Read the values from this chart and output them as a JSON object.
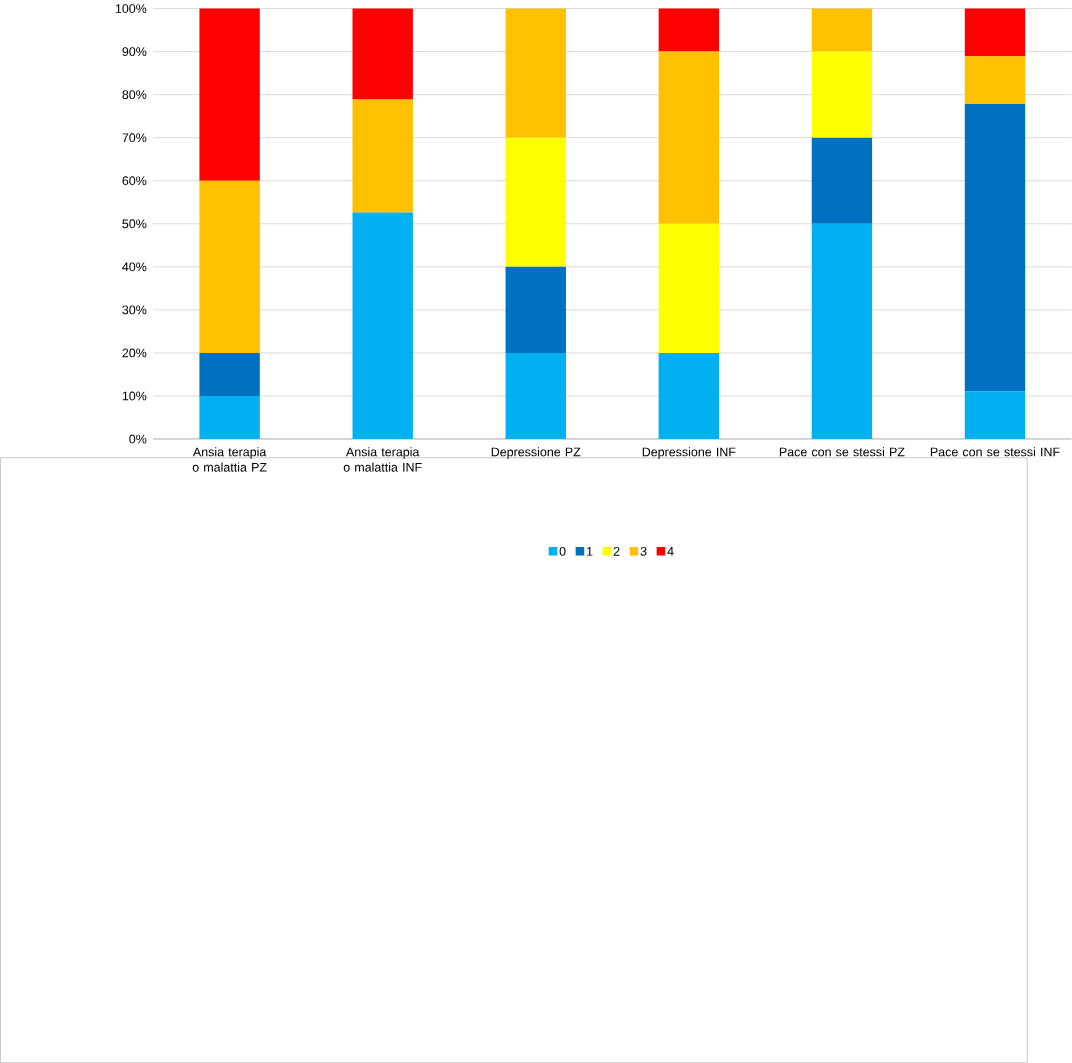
{
  "chart_data": {
    "type": "bar",
    "stacked": true,
    "categories": [
      "Ansia terapia o malattia PZ",
      "Ansia terapia o malattia INF",
      "Depressione PZ",
      "Depressione INF",
      "Pace con se stessi PZ",
      "Pace con se stessi INF"
    ],
    "series": [
      {
        "name": "0",
        "color": "#00b0f0",
        "values": [
          10,
          52.6,
          20,
          20,
          50,
          11.1
        ]
      },
      {
        "name": "1",
        "color": "#0070c0",
        "values": [
          10,
          0,
          20,
          0,
          20,
          66.7
        ]
      },
      {
        "name": "2",
        "color": "#ffff00",
        "values": [
          0,
          0,
          30,
          30,
          20,
          0
        ]
      },
      {
        "name": "3",
        "color": "#ffc000",
        "values": [
          40,
          26.3,
          30,
          40,
          10,
          11.1
        ]
      },
      {
        "name": "4",
        "color": "#ff0000",
        "values": [
          40,
          21.1,
          0,
          10,
          0,
          11.1
        ]
      }
    ],
    "ylim": [
      0,
      100
    ],
    "yticks": [
      {
        "value": 0,
        "label": "0%"
      },
      {
        "value": 10,
        "label": "10%"
      },
      {
        "value": 20,
        "label": "20%"
      },
      {
        "value": 30,
        "label": "30%"
      },
      {
        "value": 40,
        "label": "40%"
      },
      {
        "value": 50,
        "label": "50%"
      },
      {
        "value": 60,
        "label": "60%"
      },
      {
        "value": 70,
        "label": "70%"
      },
      {
        "value": 80,
        "label": "80%"
      },
      {
        "value": 90,
        "label": "90%"
      },
      {
        "value": 100,
        "label": "100%"
      }
    ],
    "grid": "y",
    "legend": "bottom"
  }
}
